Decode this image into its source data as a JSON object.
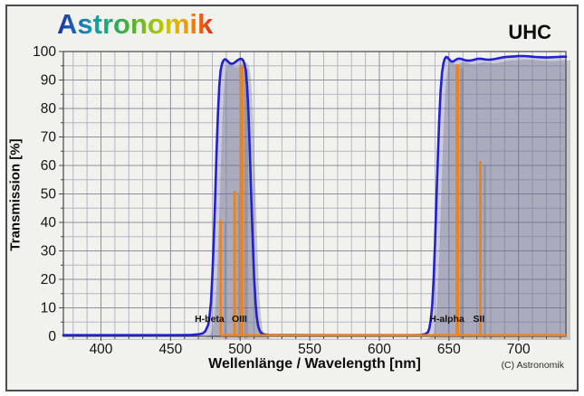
{
  "header": {
    "logo_text": "Astronomik",
    "product_label": "UHC"
  },
  "chart_data": {
    "type": "area",
    "title": "Astronomik UHC filter transmission",
    "xlabel": "Wellenlänge / Wavelength [nm]",
    "ylabel": "Transmission [%]",
    "copyright": "(C) Astronomik",
    "xlim": [
      373,
      734
    ],
    "ylim": [
      0,
      100
    ],
    "x_major_ticks": [
      400,
      450,
      500,
      550,
      600,
      650,
      700
    ],
    "x_minor_step": 10,
    "y_major_ticks": [
      0,
      10,
      20,
      30,
      40,
      50,
      60,
      70,
      80,
      90,
      100
    ],
    "y_minor_step": 5,
    "grid": true,
    "colors": {
      "curve": "#2121cf",
      "emission": "#ef8119",
      "band_fill": "rgba(104,104,168,0.27)",
      "shadow": "rgba(110,110,122,0.33)",
      "grid_major": "#8d8d9c",
      "grid_minor": "#b6b6c2",
      "plot_border": "#46464c",
      "tick_text": "#141414",
      "plot_bg": "#f1f1ee"
    },
    "series": [
      {
        "name": "UHC transmission",
        "color": "#2121cf",
        "points": [
          [
            373,
            0.4
          ],
          [
            455,
            0.4
          ],
          [
            465,
            0.5
          ],
          [
            470,
            0.7
          ],
          [
            473,
            1
          ],
          [
            475,
            1.8
          ],
          [
            477,
            4
          ],
          [
            478,
            7
          ],
          [
            479,
            12
          ],
          [
            480,
            21
          ],
          [
            481,
            33
          ],
          [
            482,
            48
          ],
          [
            483,
            64
          ],
          [
            484,
            78
          ],
          [
            485,
            88
          ],
          [
            486,
            93.5
          ],
          [
            487,
            95.8
          ],
          [
            488,
            96.9
          ],
          [
            489,
            97.3
          ],
          [
            490,
            97.1
          ],
          [
            491,
            96.6
          ],
          [
            492,
            96.1
          ],
          [
            493,
            95.8
          ],
          [
            494,
            95.7
          ],
          [
            495,
            95.8
          ],
          [
            496,
            96.1
          ],
          [
            497,
            96.5
          ],
          [
            498,
            96.9
          ],
          [
            499,
            97.2
          ],
          [
            500,
            97.4
          ],
          [
            501,
            97.4
          ],
          [
            502,
            97
          ],
          [
            503,
            95.8
          ],
          [
            504,
            93.5
          ],
          [
            505,
            88
          ],
          [
            506,
            78
          ],
          [
            507,
            64
          ],
          [
            508,
            49
          ],
          [
            509,
            34
          ],
          [
            510,
            21
          ],
          [
            511,
            12
          ],
          [
            512,
            6.5
          ],
          [
            513,
            3.5
          ],
          [
            514,
            2
          ],
          [
            515,
            1.2
          ],
          [
            517,
            0.7
          ],
          [
            520,
            0.5
          ],
          [
            560,
            0.4
          ],
          [
            600,
            0.4
          ],
          [
            625,
            0.4
          ],
          [
            630,
            0.5
          ],
          [
            633,
            0.8
          ],
          [
            635,
            1.5
          ],
          [
            636,
            3
          ],
          [
            637,
            6
          ],
          [
            638,
            11
          ],
          [
            639,
            20
          ],
          [
            640,
            33
          ],
          [
            641,
            48
          ],
          [
            642,
            63
          ],
          [
            643,
            76
          ],
          [
            644,
            86
          ],
          [
            645,
            92.5
          ],
          [
            646,
            95.8
          ],
          [
            647,
            97.5
          ],
          [
            648,
            98.1
          ],
          [
            649,
            97.9
          ],
          [
            650,
            97.3
          ],
          [
            651,
            96.8
          ],
          [
            652,
            96.5
          ],
          [
            653,
            96.5
          ],
          [
            654,
            96.8
          ],
          [
            655,
            97.1
          ],
          [
            656,
            97.4
          ],
          [
            657,
            97.5
          ],
          [
            658,
            97.5
          ],
          [
            660,
            97.2
          ],
          [
            662,
            96.9
          ],
          [
            664,
            96.8
          ],
          [
            666,
            96.9
          ],
          [
            668,
            97.1
          ],
          [
            670,
            97.4
          ],
          [
            672,
            97.5
          ],
          [
            674,
            97.4
          ],
          [
            676,
            97.2
          ],
          [
            679,
            97.1
          ],
          [
            682,
            97.3
          ],
          [
            685,
            97.6
          ],
          [
            688,
            97.9
          ],
          [
            691,
            98.1
          ],
          [
            694,
            98.2
          ],
          [
            697,
            98.3
          ],
          [
            700,
            98.4
          ],
          [
            704,
            98.4
          ],
          [
            708,
            98.3
          ],
          [
            712,
            98.1
          ],
          [
            716,
            98
          ],
          [
            720,
            97.9
          ],
          [
            724,
            98
          ],
          [
            728,
            98.1
          ],
          [
            731,
            98.2
          ],
          [
            734,
            98.2
          ]
        ]
      }
    ],
    "emission_lines": {
      "baseline_start_nm": 486,
      "baseline_pct": 0.4,
      "lines": [
        {
          "name": "H-beta",
          "nm": 486,
          "peak_pct": 41,
          "stroke_px": 2.5
        },
        {
          "name": "OIII",
          "nm": 496,
          "peak_pct": 51,
          "stroke_px": 3
        },
        {
          "name": "OIII",
          "nm": 501,
          "peak_pct": 95,
          "stroke_px": 4
        },
        {
          "name": "H-alpha",
          "nm": 656,
          "peak_pct": 95.5,
          "stroke_px": 4
        },
        {
          "name": "SII",
          "nm": 672.5,
          "peak_pct": 61.5,
          "stroke_px": 3
        }
      ],
      "labels": [
        {
          "text": "H-beta",
          "nm": 478,
          "pct": 6
        },
        {
          "text": "OIII",
          "nm": 499.5,
          "pct": 6
        },
        {
          "text": "H-alpha",
          "nm": 648.5,
          "pct": 6
        },
        {
          "text": "SII",
          "nm": 671.5,
          "pct": 6
        }
      ]
    }
  }
}
